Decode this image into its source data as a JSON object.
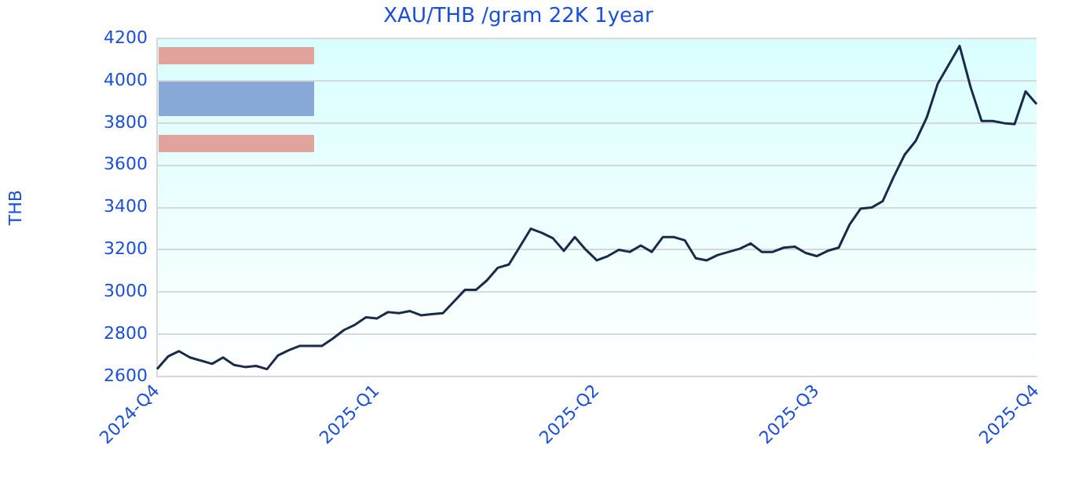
{
  "chart_data": {
    "type": "line",
    "title": "XAU/THB /gram 22K 1year",
    "ylabel": "THB",
    "categories": [
      "2024-Q4",
      null,
      null,
      null,
      null,
      null,
      null,
      null,
      null,
      null,
      null,
      null,
      null,
      null,
      null,
      null,
      null,
      null,
      null,
      null,
      "2025-Q1",
      null,
      null,
      null,
      null,
      null,
      null,
      null,
      null,
      null,
      null,
      null,
      null,
      null,
      null,
      null,
      null,
      null,
      null,
      null,
      "2025-Q2",
      null,
      null,
      null,
      null,
      null,
      null,
      null,
      null,
      null,
      null,
      null,
      null,
      null,
      null,
      null,
      null,
      null,
      null,
      null,
      "2025-Q3",
      null,
      null,
      null,
      null,
      null,
      null,
      null,
      null,
      null,
      null,
      null,
      null,
      null,
      null,
      null,
      null,
      null,
      null,
      null,
      "2025-Q4"
    ],
    "ylim": [
      2600,
      4200
    ],
    "yticks": [
      2600,
      2800,
      3000,
      3200,
      3400,
      3600,
      3800,
      4000,
      4200
    ],
    "grid": "y",
    "legend": false,
    "marker": "none",
    "line_style": "solid",
    "series": [
      {
        "color": "#1a2a4a",
        "values": [
          2635,
          2695,
          2720,
          2690,
          2675,
          2660,
          2690,
          2655,
          2645,
          2650,
          2635,
          2700,
          2725,
          2745,
          2745,
          2745,
          2780,
          2820,
          2845,
          2880,
          2875,
          2905,
          2900,
          2910,
          2890,
          2895,
          2900,
          2955,
          3010,
          3010,
          3055,
          3115,
          3130,
          3215,
          3300,
          3280,
          3255,
          3195,
          3260,
          3200,
          3150,
          3170,
          3200,
          3190,
          3220,
          3190,
          3260,
          3260,
          3245,
          3160,
          3150,
          3175,
          3190,
          3205,
          3230,
          3190,
          3190,
          3210,
          3215,
          3185,
          3170,
          3195,
          3210,
          3320,
          3395,
          3400,
          3430,
          3545,
          3650,
          3715,
          3825,
          3985,
          4075,
          4165,
          3970,
          3810,
          3810,
          3800,
          3795,
          3950,
          3890
        ]
      }
    ]
  }
}
